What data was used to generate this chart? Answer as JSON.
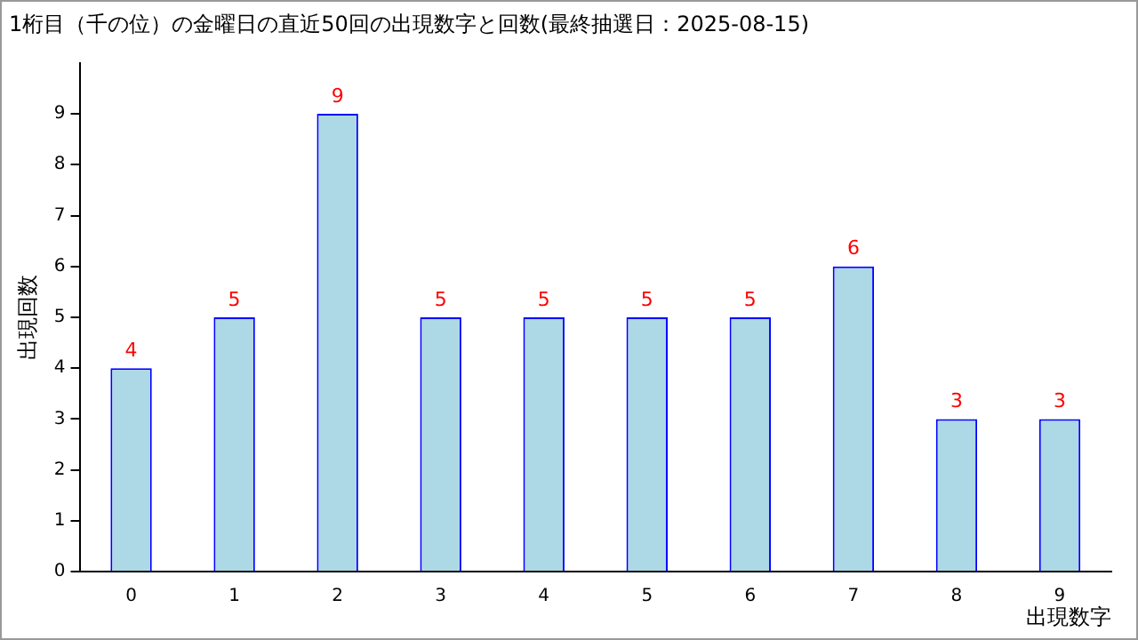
{
  "chart_data": {
    "type": "bar",
    "title": "1桁目（千の位）の金曜日の直近50回の出現数字と回数(最終抽選日：2025-08-15)",
    "xlabel": "出現数字",
    "ylabel": "出現回数",
    "categories": [
      "0",
      "1",
      "2",
      "3",
      "4",
      "5",
      "6",
      "7",
      "8",
      "9"
    ],
    "values": [
      4,
      5,
      9,
      5,
      5,
      5,
      5,
      6,
      3,
      3
    ],
    "color": "#add8e6",
    "ylim": [
      0,
      10
    ],
    "yticks": [
      0,
      1,
      2,
      3,
      4,
      5,
      6,
      7,
      8,
      9
    ],
    "grid": false,
    "legend": false,
    "data_labels": true
  }
}
